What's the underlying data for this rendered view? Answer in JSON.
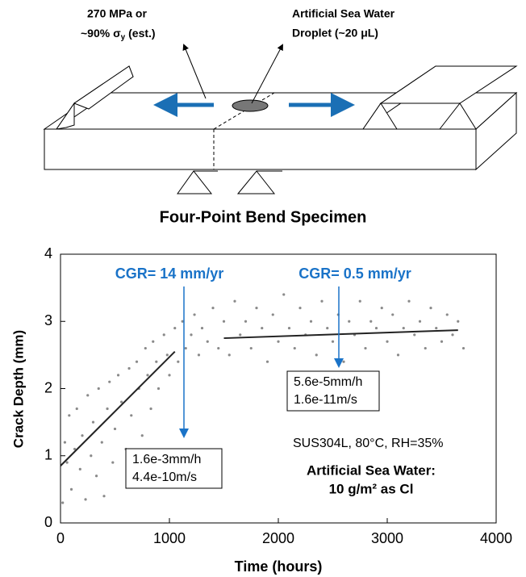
{
  "diagram": {
    "title": "Four-Point Bend Specimen",
    "stress_label": {
      "line1": "270 MPa or",
      "line2_parts": [
        "~90% σ",
        "y",
        " (est.)"
      ]
    },
    "droplet_label": {
      "line1": "Artificial Sea Water",
      "line2": "Droplet (~20 μL)"
    }
  },
  "chart_data": {
    "type": "scatter",
    "xlabel": "Time (hours)",
    "ylabel": "Crack Depth (mm)",
    "xlim": [
      0,
      4000
    ],
    "xticks": [
      0,
      1000,
      2000,
      3000,
      4000
    ],
    "ylim": [
      0,
      4
    ],
    "yticks": [
      0,
      1,
      2,
      3,
      4
    ],
    "points": {
      "color": "#8a8a8a",
      "x": [
        20,
        40,
        60,
        80,
        100,
        130,
        150,
        180,
        200,
        230,
        250,
        280,
        300,
        330,
        350,
        380,
        400,
        430,
        450,
        480,
        500,
        530,
        560,
        600,
        630,
        650,
        700,
        720,
        750,
        780,
        800,
        830,
        850,
        880,
        900,
        950,
        980,
        1000,
        1050,
        1080,
        1120,
        1150,
        1200,
        1230,
        1270,
        1300,
        1350,
        1400,
        1450,
        1500,
        1550,
        1600,
        1650,
        1700,
        1750,
        1800,
        1850,
        1900,
        1950,
        2000,
        2050,
        2100,
        2150,
        2200,
        2250,
        2300,
        2350,
        2400,
        2450,
        2500,
        2550,
        2600,
        2650,
        2700,
        2750,
        2800,
        2850,
        2900,
        2950,
        3000,
        3050,
        3100,
        3150,
        3200,
        3250,
        3300,
        3350,
        3400,
        3450,
        3500,
        3550,
        3600,
        3650,
        3700
      ],
      "y": [
        0.3,
        1.2,
        0.9,
        1.6,
        0.5,
        1.1,
        1.7,
        0.8,
        1.3,
        0.35,
        1.9,
        1.0,
        1.5,
        0.7,
        2.0,
        1.2,
        0.4,
        1.7,
        2.1,
        0.9,
        1.4,
        2.2,
        1.8,
        1.1,
        2.3,
        1.6,
        2.4,
        2.0,
        1.3,
        2.6,
        2.2,
        1.7,
        2.7,
        2.4,
        2.0,
        2.8,
        2.5,
        2.2,
        2.9,
        2.4,
        3.0,
        2.6,
        2.8,
        3.1,
        2.5,
        2.9,
        2.7,
        3.2,
        2.6,
        3.0,
        2.5,
        3.3,
        2.8,
        3.0,
        2.6,
        3.2,
        2.9,
        2.4,
        3.1,
        2.7,
        3.4,
        2.9,
        2.6,
        3.2,
        2.8,
        3.0,
        2.5,
        3.3,
        2.9,
        2.7,
        3.1,
        2.4,
        3.0,
        2.8,
        3.3,
        2.6,
        3.0,
        2.9,
        3.2,
        2.7,
        3.1,
        2.5,
        2.9,
        3.3,
        2.8,
        3.0,
        2.6,
        3.2,
        2.9,
        2.7,
        3.1,
        2.8,
        3.0,
        2.6
      ]
    },
    "fits": [
      {
        "color": "#222222",
        "x": [
          0,
          1050
        ],
        "y": [
          0.85,
          2.55
        ]
      },
      {
        "color": "#222222",
        "x": [
          1500,
          3650
        ],
        "y": [
          2.75,
          2.87
        ]
      }
    ],
    "annotations": [
      {
        "text": "CGR= 14 mm/yr",
        "color": "#1a73c8",
        "box": [
          "1.6e-3mm/h",
          "4.4e-10m/s"
        ]
      },
      {
        "text": "CGR= 0.5 mm/yr",
        "color": "#1a73c8",
        "box": [
          "5.6e-5mm/h",
          "1.6e-11m/s"
        ]
      }
    ],
    "condition": "SUS304L, 80°C, RH=35%",
    "solution": [
      "Artificial Sea Water:",
      "10 g/m² as Cl"
    ]
  }
}
